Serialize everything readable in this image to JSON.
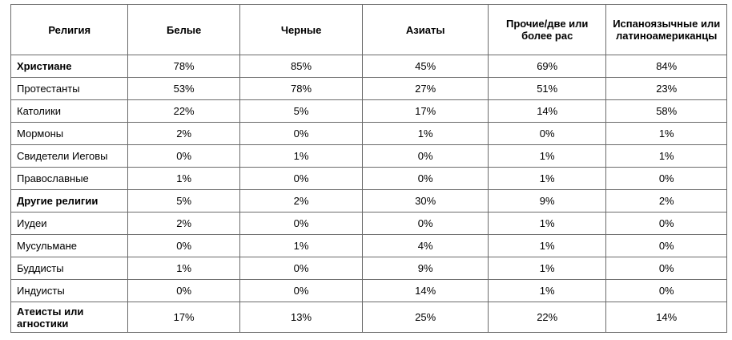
{
  "table": {
    "headers": [
      "Религия",
      "Белые",
      "Черные",
      "Азиаты",
      "Прочие/две или более рас",
      "Испаноязычные или латиноамериканцы"
    ],
    "rows": [
      {
        "label": "Христиане",
        "bold": true,
        "values": [
          "78%",
          "85%",
          "45%",
          "69%",
          "84%"
        ]
      },
      {
        "label": "Протестанты",
        "bold": false,
        "values": [
          "53%",
          "78%",
          "27%",
          "51%",
          "23%"
        ]
      },
      {
        "label": "Католики",
        "bold": false,
        "values": [
          "22%",
          "5%",
          "17%",
          "14%",
          "58%"
        ]
      },
      {
        "label": "Мормоны",
        "bold": false,
        "values": [
          "2%",
          "0%",
          "1%",
          "0%",
          "1%"
        ]
      },
      {
        "label": "Свидетели Иеговы",
        "bold": false,
        "values": [
          "0%",
          "1%",
          "0%",
          "1%",
          "1%"
        ]
      },
      {
        "label": "Православные",
        "bold": false,
        "values": [
          "1%",
          "0%",
          "0%",
          "1%",
          "0%"
        ]
      },
      {
        "label": "Другие религии",
        "bold": true,
        "values": [
          "5%",
          "2%",
          "30%",
          "9%",
          "2%"
        ]
      },
      {
        "label": "Иудеи",
        "bold": false,
        "values": [
          "2%",
          "0%",
          "0%",
          "1%",
          "0%"
        ]
      },
      {
        "label": "Мусульмане",
        "bold": false,
        "values": [
          "0%",
          "1%",
          "4%",
          "1%",
          "0%"
        ]
      },
      {
        "label": "Буддисты",
        "bold": false,
        "values": [
          "1%",
          "0%",
          "9%",
          "1%",
          "0%"
        ]
      },
      {
        "label": "Индуисты",
        "bold": false,
        "values": [
          "0%",
          "0%",
          "14%",
          "1%",
          "0%"
        ]
      },
      {
        "label": "Атеисты или агностики",
        "bold": true,
        "values": [
          "17%",
          "13%",
          "25%",
          "22%",
          "14%"
        ]
      }
    ]
  }
}
